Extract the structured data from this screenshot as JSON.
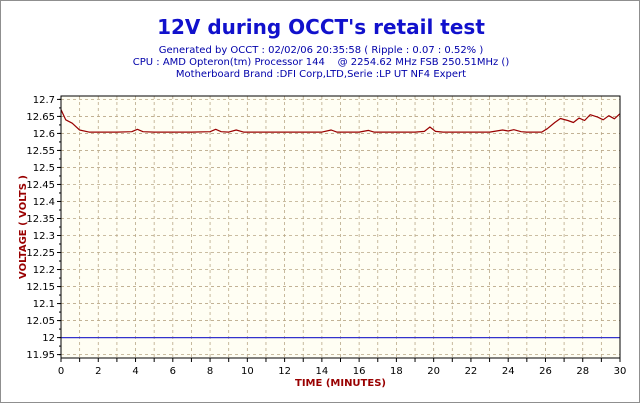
{
  "chart_data": {
    "type": "line",
    "title": "12V during OCCT's retail test",
    "subtitle_lines": [
      "Generated by OCCT : 02/02/06 20:35:58 ( Ripple : 0.07 : 0.52% )",
      "CPU : AMD Opteron(tm) Processor 144    @ 2254.62 MHz FSB 250.51MHz ()",
      "Motherboard Brand :DFI Corp,LTD,Serie :LP UT NF4 Expert"
    ],
    "xlabel": "TIME (MINUTES)",
    "ylabel": "VOLTAGE ( VOLTS )",
    "xlim": [
      0,
      30
    ],
    "ylim": [
      11.94,
      12.71
    ],
    "x_ticks": [
      "0",
      "2",
      "4",
      "6",
      "8",
      "10",
      "12",
      "14",
      "16",
      "18",
      "20",
      "22",
      "24",
      "26",
      "28",
      "30"
    ],
    "y_ticks": [
      "12.7",
      "12.65",
      "12.6",
      "12.55",
      "12.5",
      "12.45",
      "12.4",
      "12.35",
      "12.3",
      "12.25",
      "12.2",
      "12.15",
      "12.1",
      "12.05",
      "12",
      "11.95"
    ],
    "grid": true,
    "series": [
      {
        "color": "#990000",
        "x": [
          0,
          0.25,
          0.6,
          1.0,
          1.5,
          2,
          3,
          3.8,
          4.1,
          4.4,
          5,
          6,
          7,
          8,
          8.3,
          8.6,
          9,
          9.4,
          9.8,
          10,
          12,
          14,
          14.5,
          14.8,
          16,
          16.5,
          16.8,
          18,
          19,
          19.5,
          19.8,
          20.1,
          20.5,
          22,
          23,
          23.7,
          24,
          24.3,
          24.7,
          25,
          25.5,
          25.8,
          26.1,
          26.5,
          26.8,
          27.2,
          27.5,
          27.8,
          28.1,
          28.4,
          28.8,
          29.1,
          29.4,
          29.7,
          30
        ],
        "y": [
          12.67,
          12.64,
          12.63,
          12.61,
          12.604,
          12.604,
          12.604,
          12.605,
          12.612,
          12.605,
          12.604,
          12.604,
          12.604,
          12.605,
          12.612,
          12.605,
          12.604,
          12.61,
          12.604,
          12.604,
          12.604,
          12.604,
          12.61,
          12.604,
          12.604,
          12.609,
          12.604,
          12.604,
          12.604,
          12.606,
          12.619,
          12.606,
          12.604,
          12.604,
          12.604,
          12.61,
          12.607,
          12.611,
          12.605,
          12.604,
          12.604,
          12.604,
          12.614,
          12.632,
          12.644,
          12.638,
          12.632,
          12.645,
          12.638,
          12.655,
          12.648,
          12.64,
          12.652,
          12.643,
          12.658
        ]
      },
      {
        "color": "#3333cc",
        "x": [
          0,
          30
        ],
        "y": [
          12.0,
          12.0
        ]
      }
    ]
  }
}
